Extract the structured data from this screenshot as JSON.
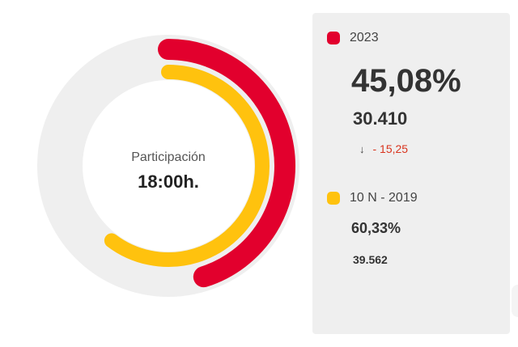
{
  "colors": {
    "current": "#e2002d",
    "previous": "#ffc20e",
    "track": "#efefef",
    "inner": "#ffffff",
    "negative": "#d9341e"
  },
  "center": {
    "title": "Participación",
    "time": "18:00h."
  },
  "chart_data": {
    "type": "donut",
    "unit": "%",
    "max": 100,
    "series": [
      {
        "name": "2023",
        "value": 45.08,
        "color": "#e2002d"
      },
      {
        "name": "10 N - 2019",
        "value": 60.33,
        "color": "#ffc20e"
      }
    ]
  },
  "legend": {
    "current": {
      "label": "2023",
      "percent": "45,08%",
      "count": "30.410",
      "delta_icon": "arrow-down-icon",
      "delta": "- 15,25"
    },
    "previous": {
      "label": "10 N - 2019",
      "percent": "60,33%",
      "count": "39.562"
    }
  }
}
